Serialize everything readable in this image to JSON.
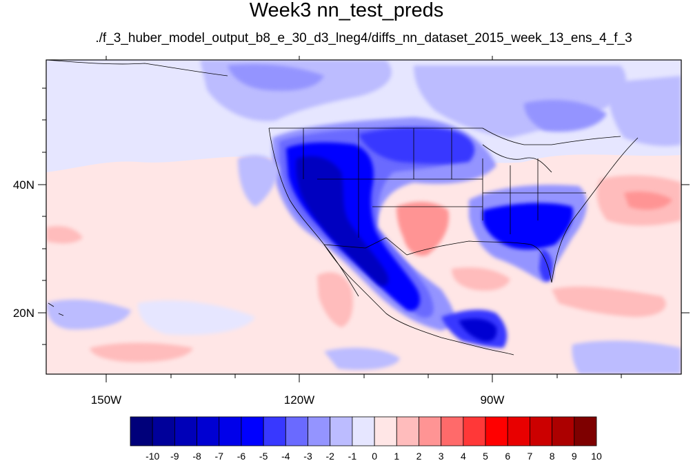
{
  "title": "Week3 nn_test_preds",
  "subtitle": "./f_3_huber_model_output_b8_e_30_d3_lneg4/diffs_nn_dataset_2015_week_13_ens_4_f_3",
  "map": {
    "lat_labels": [
      "40N",
      "20N"
    ],
    "lon_labels": [
      "150W",
      "120W",
      "90W"
    ]
  },
  "colorbar": {
    "labels": [
      "-10",
      "-9",
      "-8",
      "-7",
      "-6",
      "-5",
      "-4",
      "-3",
      "-2",
      "-1",
      "0",
      "1",
      "2",
      "3",
      "4",
      "5",
      "6",
      "7",
      "8",
      "9",
      "10"
    ],
    "colors": [
      "#00007a",
      "#00009a",
      "#0000b8",
      "#0000d2",
      "#0000ea",
      "#0000ff",
      "#3838ff",
      "#6a6aff",
      "#9494ff",
      "#bcbcff",
      "#e6e6ff",
      "#ffe6e6",
      "#ffbcbc",
      "#ff9494",
      "#ff6a6a",
      "#ff3838",
      "#ff0000",
      "#e80000",
      "#cc0000",
      "#ac0000",
      "#7e0000"
    ]
  }
}
